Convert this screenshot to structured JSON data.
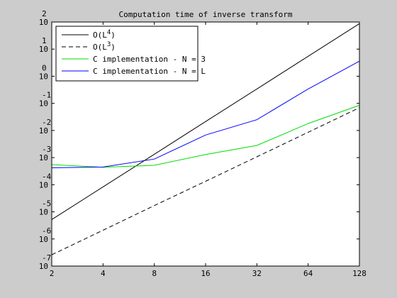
{
  "window": {
    "background": "#cccccc"
  },
  "chart_data": {
    "type": "line",
    "title": "Computation time of inverse transform",
    "xlabel": "",
    "ylabel": "",
    "x_scale": "log2",
    "y_scale": "log10",
    "xlim": [
      2,
      128
    ],
    "ylim": [
      1e-07,
      100
    ],
    "x_ticks": [
      2,
      4,
      8,
      16,
      32,
      64,
      128
    ],
    "x_tick_labels": [
      "2",
      "4",
      "8",
      "16",
      "32",
      "64",
      "128"
    ],
    "y_ticks": [
      {
        "mantissa": "10",
        "exponent": "-7",
        "value": 1e-07
      },
      {
        "mantissa": "10",
        "exponent": "-6",
        "value": 1e-06
      },
      {
        "mantissa": "10",
        "exponent": "-5",
        "value": 1e-05
      },
      {
        "mantissa": "10",
        "exponent": "-4",
        "value": 0.0001
      },
      {
        "mantissa": "10",
        "exponent": "-3",
        "value": 0.001
      },
      {
        "mantissa": "10",
        "exponent": "-2",
        "value": 0.01
      },
      {
        "mantissa": "10",
        "exponent": "-1",
        "value": 0.1
      },
      {
        "mantissa": "10",
        "exponent": "0",
        "value": 1
      },
      {
        "mantissa": "10",
        "exponent": "1",
        "value": 10
      },
      {
        "mantissa": "10",
        "exponent": "2",
        "value": 100
      }
    ],
    "grid": false,
    "legend_position": "top-left",
    "series": [
      {
        "name": "O(L4)",
        "label_base": "O(L",
        "label_sup": "4",
        "label_tail": ")",
        "color": "#000000",
        "dash": "solid",
        "x": [
          2,
          4,
          8,
          16,
          32,
          64,
          128
        ],
        "y": [
          5.2e-06,
          8.3e-05,
          0.00133,
          0.0213,
          0.34,
          5.45,
          87
        ]
      },
      {
        "name": "O(L3)",
        "label_base": "O(L",
        "label_sup": "3",
        "label_tail": ")",
        "color": "#000000",
        "dash": "dashed",
        "x": [
          2,
          4,
          8,
          16,
          32,
          64,
          128
        ],
        "y": [
          2.6e-07,
          2.1e-06,
          1.7e-05,
          0.000134,
          0.00107,
          0.0086,
          0.069
        ]
      },
      {
        "name": "C implementation - N = 3",
        "label_base": "C implementation - N = 3",
        "label_sup": "",
        "label_tail": "",
        "color": "#00dd00",
        "dash": "solid",
        "x": [
          2,
          4,
          8,
          16,
          32,
          64,
          128
        ],
        "y": [
          0.00055,
          0.00044,
          0.00052,
          0.0013,
          0.0028,
          0.018,
          0.085
        ]
      },
      {
        "name": "C implementation - N = L",
        "label_base": "C implementation - N = L",
        "label_sup": "",
        "label_tail": "",
        "color": "#0000ff",
        "dash": "solid",
        "x": [
          2,
          4,
          8,
          16,
          32,
          64,
          128
        ],
        "y": [
          0.00042,
          0.00045,
          0.00088,
          0.0068,
          0.025,
          0.34,
          3.6
        ]
      }
    ]
  }
}
